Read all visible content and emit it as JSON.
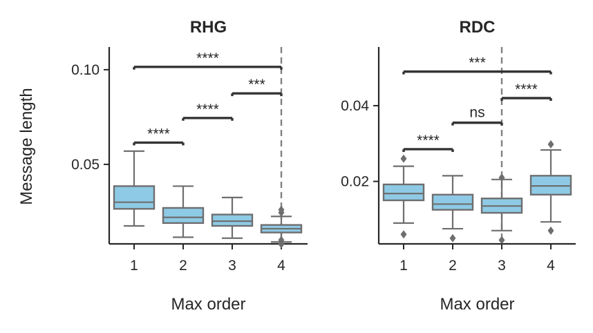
{
  "figure": {
    "ylabel": "Message length"
  },
  "chart_data": [
    {
      "type": "box",
      "title": "RHG",
      "xlabel": "Max order",
      "ylabel": "Message length",
      "categories": [
        "1",
        "2",
        "3",
        "4"
      ],
      "ylim": [
        0.008,
        0.112
      ],
      "yticks": [
        0.05,
        0.1
      ],
      "ytick_labels": [
        "0.05",
        "0.10"
      ],
      "box_color": "#8ecae6",
      "reference_line": {
        "x": "4",
        "style": "dashed",
        "color": "#808080"
      },
      "boxes": [
        {
          "category": "1",
          "whislo": 0.0175,
          "q1": 0.0265,
          "median": 0.03,
          "q3": 0.0385,
          "whishi": 0.057,
          "fliers": []
        },
        {
          "category": "2",
          "whislo": 0.0115,
          "q1": 0.019,
          "median": 0.022,
          "q3": 0.027,
          "whishi": 0.0385,
          "fliers": []
        },
        {
          "category": "3",
          "whislo": 0.011,
          "q1": 0.0175,
          "median": 0.02,
          "q3": 0.0235,
          "whishi": 0.0325,
          "fliers": []
        },
        {
          "category": "4",
          "whislo": 0.009,
          "q1": 0.014,
          "median": 0.016,
          "q3": 0.018,
          "whishi": 0.0225,
          "fliers": [
            0.0078,
            0.01,
            0.0245,
            0.026
          ]
        }
      ],
      "significance": [
        {
          "from": "1",
          "to": "2",
          "y": 0.0615,
          "label": "****"
        },
        {
          "from": "2",
          "to": "3",
          "y": 0.0745,
          "label": "****"
        },
        {
          "from": "3",
          "to": "4",
          "y": 0.0875,
          "label": "***"
        },
        {
          "from": "1",
          "to": "4",
          "y": 0.1015,
          "label": "****"
        }
      ]
    },
    {
      "type": "box",
      "title": "RDC",
      "xlabel": "Max order",
      "ylabel": "",
      "categories": [
        "1",
        "2",
        "3",
        "4"
      ],
      "ylim": [
        0.0035,
        0.0555
      ],
      "yticks": [
        0.02,
        0.04
      ],
      "ytick_labels": [
        "0.02",
        "0.04"
      ],
      "box_color": "#8ecae6",
      "reference_line": {
        "x": "3",
        "style": "dashed",
        "color": "#808080"
      },
      "boxes": [
        {
          "category": "1",
          "whislo": 0.009,
          "q1": 0.015,
          "median": 0.0168,
          "q3": 0.0192,
          "whishi": 0.024,
          "fliers": [
            0.006,
            0.026
          ]
        },
        {
          "category": "2",
          "whislo": 0.0075,
          "q1": 0.0125,
          "median": 0.014,
          "q3": 0.0165,
          "whishi": 0.0215,
          "fliers": [
            0.005
          ]
        },
        {
          "category": "3",
          "whislo": 0.007,
          "q1": 0.0117,
          "median": 0.0135,
          "q3": 0.0155,
          "whishi": 0.0205,
          "fliers": [
            0.0045,
            0.021
          ]
        },
        {
          "category": "4",
          "whislo": 0.0093,
          "q1": 0.0165,
          "median": 0.0188,
          "q3": 0.0215,
          "whishi": 0.0283,
          "fliers": [
            0.007,
            0.0298
          ]
        }
      ],
      "significance": [
        {
          "from": "1",
          "to": "2",
          "y": 0.0285,
          "label": "****"
        },
        {
          "from": "2",
          "to": "3",
          "y": 0.0355,
          "label": "ns"
        },
        {
          "from": "3",
          "to": "4",
          "y": 0.042,
          "label": "****"
        },
        {
          "from": "1",
          "to": "4",
          "y": 0.049,
          "label": "***"
        }
      ]
    }
  ]
}
